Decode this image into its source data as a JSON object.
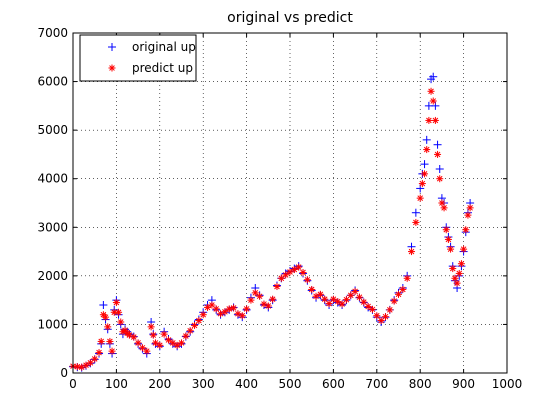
{
  "chart_data": {
    "type": "scatter",
    "title": "original vs predict",
    "xlabel": "",
    "ylabel": "",
    "xlim": [
      0,
      1000
    ],
    "ylim": [
      0,
      7000
    ],
    "x_ticks": [
      0,
      100,
      200,
      300,
      400,
      500,
      600,
      700,
      800,
      900,
      1000
    ],
    "y_ticks": [
      0,
      1000,
      2000,
      3000,
      4000,
      5000,
      6000,
      7000
    ],
    "x_tick_labels": [
      "0",
      "100",
      "200",
      "300",
      "400",
      "500",
      "600",
      "700",
      "800",
      "900",
      "1000"
    ],
    "y_tick_labels": [
      "0",
      "1000",
      "2000",
      "3000",
      "4000",
      "5000",
      "6000",
      "7000"
    ],
    "grid": true,
    "legend_position": "top-left",
    "colors": {
      "original": "#0000ff",
      "predict": "#ff0000"
    },
    "series": [
      {
        "name": "original up",
        "marker": "+",
        "color": "#0000ff",
        "x": [
          0,
          10,
          20,
          30,
          40,
          50,
          60,
          65,
          70,
          75,
          80,
          85,
          90,
          95,
          100,
          105,
          110,
          115,
          120,
          125,
          130,
          140,
          150,
          160,
          170,
          180,
          185,
          190,
          200,
          210,
          220,
          230,
          240,
          250,
          260,
          270,
          280,
          290,
          300,
          310,
          320,
          330,
          340,
          350,
          360,
          370,
          380,
          390,
          400,
          410,
          420,
          430,
          440,
          450,
          460,
          470,
          480,
          490,
          500,
          510,
          520,
          530,
          540,
          550,
          560,
          570,
          580,
          590,
          600,
          610,
          620,
          630,
          640,
          650,
          660,
          670,
          680,
          690,
          700,
          710,
          720,
          730,
          740,
          750,
          760,
          770,
          780,
          790,
          800,
          805,
          810,
          815,
          820,
          825,
          830,
          835,
          840,
          845,
          850,
          855,
          860,
          865,
          870,
          875,
          880,
          885,
          890,
          895,
          900,
          905,
          910,
          915
        ],
        "y": [
          130,
          120,
          110,
          150,
          200,
          280,
          400,
          600,
          1400,
          1100,
          900,
          600,
          400,
          1300,
          1500,
          1200,
          1000,
          800,
          900,
          850,
          800,
          750,
          600,
          500,
          400,
          1050,
          800,
          600,
          550,
          850,
          700,
          600,
          550,
          600,
          750,
          850,
          1000,
          1100,
          1250,
          1400,
          1500,
          1300,
          1200,
          1250,
          1300,
          1350,
          1200,
          1150,
          1300,
          1550,
          1750,
          1600,
          1400,
          1350,
          1500,
          1800,
          1950,
          2050,
          2100,
          2150,
          2200,
          2050,
          1900,
          1700,
          1550,
          1600,
          1500,
          1400,
          1500,
          1450,
          1400,
          1500,
          1600,
          1700,
          1550,
          1450,
          1350,
          1300,
          1150,
          1050,
          1150,
          1300,
          1500,
          1650,
          1750,
          2000,
          2600,
          3300,
          3800,
          4100,
          4300,
          4800,
          5500,
          6050,
          6100,
          5500,
          4700,
          4200,
          3600,
          3500,
          3000,
          2800,
          2600,
          2200,
          1900,
          1750,
          2000,
          2200,
          2500,
          2900,
          3300,
          3500
        ]
      },
      {
        "name": "predict up",
        "marker": "*",
        "color": "#ff0000",
        "x": [
          0,
          10,
          20,
          30,
          40,
          50,
          60,
          65,
          70,
          75,
          80,
          85,
          90,
          95,
          100,
          105,
          110,
          115,
          120,
          125,
          130,
          140,
          150,
          160,
          170,
          180,
          185,
          190,
          200,
          210,
          220,
          230,
          240,
          250,
          260,
          270,
          280,
          290,
          300,
          310,
          320,
          330,
          340,
          350,
          360,
          370,
          380,
          390,
          400,
          410,
          420,
          430,
          440,
          450,
          460,
          470,
          480,
          490,
          500,
          510,
          520,
          530,
          540,
          550,
          560,
          570,
          580,
          590,
          600,
          610,
          620,
          630,
          640,
          650,
          660,
          670,
          680,
          690,
          700,
          710,
          720,
          730,
          740,
          750,
          760,
          770,
          780,
          790,
          800,
          805,
          810,
          815,
          820,
          825,
          830,
          835,
          840,
          845,
          850,
          855,
          860,
          865,
          870,
          875,
          880,
          885,
          890,
          895,
          900,
          905,
          910,
          915
        ],
        "y": [
          140,
          130,
          120,
          160,
          210,
          290,
          420,
          650,
          1200,
          1150,
          950,
          650,
          450,
          1250,
          1450,
          1250,
          1050,
          850,
          880,
          820,
          780,
          740,
          620,
          520,
          450,
          950,
          780,
          620,
          570,
          800,
          680,
          620,
          570,
          620,
          760,
          870,
          980,
          1080,
          1200,
          1350,
          1400,
          1320,
          1220,
          1260,
          1320,
          1340,
          1220,
          1180,
          1320,
          1500,
          1650,
          1580,
          1420,
          1380,
          1520,
          1780,
          1950,
          2020,
          2080,
          2130,
          2180,
          2070,
          1920,
          1720,
          1580,
          1620,
          1520,
          1430,
          1520,
          1470,
          1420,
          1510,
          1600,
          1680,
          1560,
          1460,
          1370,
          1310,
          1180,
          1080,
          1160,
          1300,
          1480,
          1620,
          1720,
          1950,
          2500,
          3100,
          3600,
          3900,
          4100,
          4600,
          5200,
          5800,
          5600,
          5200,
          4500,
          4000,
          3500,
          3400,
          2950,
          2750,
          2550,
          2150,
          1950,
          1850,
          2050,
          2250,
          2550,
          2950,
          3250,
          3400
        ]
      }
    ]
  }
}
